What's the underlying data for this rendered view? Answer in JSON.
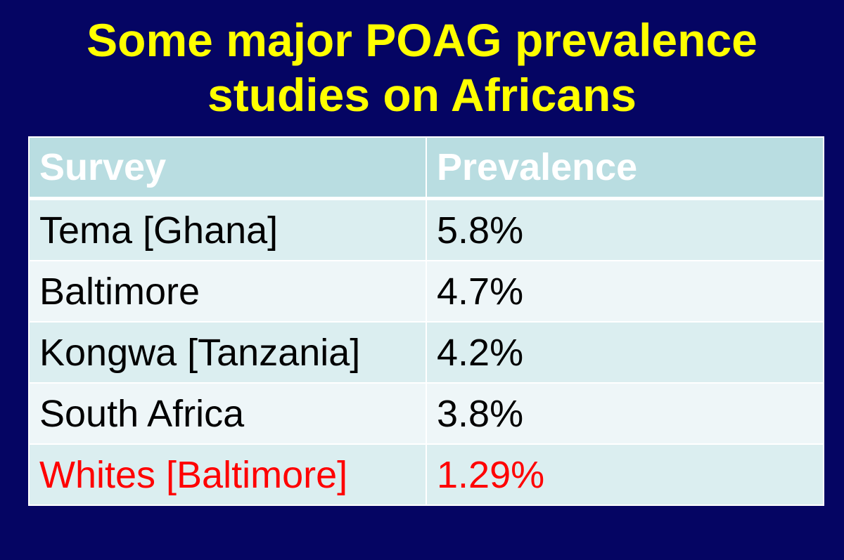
{
  "title": {
    "line1": "Some major POAG prevalence",
    "line2": "studies on Africans"
  },
  "colors": {
    "background": "#050563",
    "title": "#FFFF00",
    "header_fill": "#b9dde1",
    "row_fill_a": "#dbeef0",
    "row_fill_b": "#eef6f8",
    "highlight_text": "#FF0000"
  },
  "table": {
    "headers": [
      "Survey",
      "Prevalence"
    ],
    "rows": [
      {
        "survey": "Tema [Ghana]",
        "prevalence": "5.8%",
        "highlight": false
      },
      {
        "survey": "Baltimore",
        "prevalence": "4.7%",
        "highlight": false
      },
      {
        "survey": "Kongwa [Tanzania]",
        "prevalence": "4.2%",
        "highlight": false
      },
      {
        "survey": "South Africa",
        "prevalence": "3.8%",
        "highlight": false
      },
      {
        "survey": "Whites [Baltimore]",
        "prevalence": "1.29%",
        "highlight": true
      }
    ]
  }
}
